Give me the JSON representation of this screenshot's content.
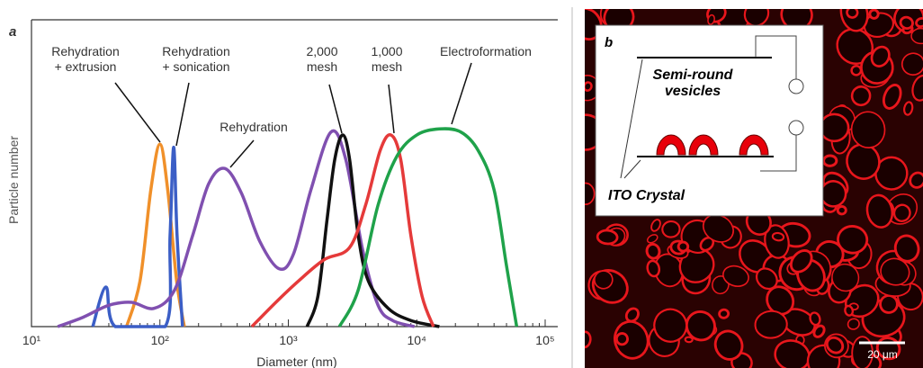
{
  "chart_data": {
    "type": "line",
    "panel_label": "a",
    "x_label": "Diameter (nm)",
    "y_label": "Particle number",
    "xlog": true,
    "xlim": [
      10,
      100000
    ],
    "xticks": [
      {
        "value": 10,
        "label": "10¹"
      },
      {
        "value": 100,
        "label": "10²"
      },
      {
        "value": 1000,
        "label": "10³"
      },
      {
        "value": 10000,
        "label": "10⁴"
      },
      {
        "value": 100000,
        "label": "10⁵"
      }
    ],
    "ylim": [
      0,
      1
    ],
    "series": [
      {
        "name": "Rehydration + extrusion",
        "color": "#f0902a",
        "x": [
          55,
          70,
          85,
          100,
          115,
          135,
          155
        ],
        "values": [
          0,
          0.15,
          0.45,
          0.6,
          0.45,
          0.15,
          0
        ]
      },
      {
        "name": "Rehydration + sonication",
        "color": "#3b5ec6",
        "x": [
          30,
          38,
          45,
          110,
          120,
          128,
          136,
          150
        ],
        "values": [
          0,
          0.13,
          0,
          0,
          0.3,
          0.59,
          0.3,
          0
        ]
      },
      {
        "name": "Rehydration",
        "color": "#8050b0",
        "x": [
          16,
          25,
          40,
          60,
          90,
          130,
          180,
          240,
          320,
          430,
          600,
          850,
          1100,
          1500,
          2150,
          2800,
          3800,
          5000,
          6500,
          9600
        ],
        "values": [
          0,
          0.03,
          0.07,
          0.08,
          0.06,
          0.12,
          0.3,
          0.47,
          0.52,
          0.44,
          0.28,
          0.19,
          0.24,
          0.45,
          0.64,
          0.55,
          0.25,
          0.07,
          0.02,
          0
        ]
      },
      {
        "name": "2,000 mesh",
        "color": "#111111",
        "x": [
          1400,
          1700,
          2000,
          2300,
          2650,
          3000,
          3500,
          4200,
          6000,
          9000,
          15000
        ],
        "values": [
          0,
          0.1,
          0.35,
          0.55,
          0.63,
          0.55,
          0.3,
          0.15,
          0.06,
          0.02,
          0
        ]
      },
      {
        "name": "1,000 mesh",
        "color": "#e53a3a",
        "x": [
          520,
          800,
          1200,
          1900,
          3000,
          4000,
          5200,
          6300,
          7500,
          9000,
          11000,
          13500
        ],
        "values": [
          0,
          0.08,
          0.15,
          0.22,
          0.26,
          0.4,
          0.58,
          0.63,
          0.55,
          0.3,
          0.1,
          0
        ]
      },
      {
        "name": "Electroformation",
        "color": "#1fa24a",
        "x": [
          2500,
          3500,
          5000,
          7000,
          10000,
          15000,
          22000,
          30000,
          40000,
          50000,
          60000
        ],
        "values": [
          0,
          0.12,
          0.4,
          0.56,
          0.63,
          0.65,
          0.64,
          0.58,
          0.45,
          0.2,
          0
        ]
      }
    ]
  },
  "panel_b": {
    "label": "b",
    "inset": {
      "top_label": "Semi-round vesicles",
      "bottom_label": "ITO Crystal"
    },
    "scale_bar": "20 μm"
  }
}
